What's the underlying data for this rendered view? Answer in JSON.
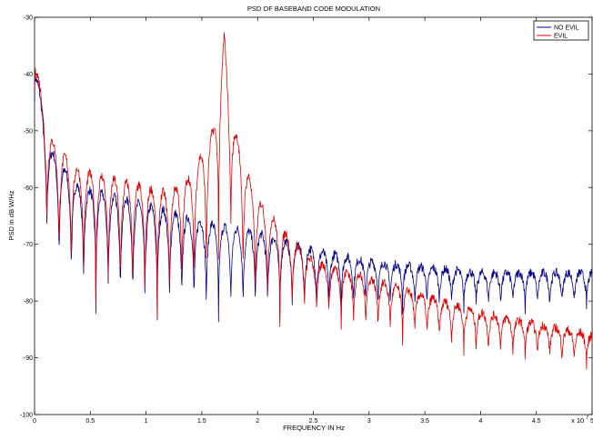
{
  "chart_data": {
    "type": "line",
    "title": "PSD OF BASEBAND CODE MODULATION",
    "xlabel": "FREQUENCY IN Hz",
    "ylabel": "PSD in dB W/Hz",
    "x_exponent_label": "x 10",
    "x_exponent_power": "7",
    "xlim": [
      0,
      5
    ],
    "ylim": [
      -100,
      -30
    ],
    "x_ticks": [
      "0",
      "0.5",
      "1",
      "1.5",
      "2",
      "2.5",
      "3",
      "3.5",
      "4",
      "4.5",
      "5"
    ],
    "y_ticks": [
      "-30",
      "-40",
      "-50",
      "-60",
      "-70",
      "-80",
      "-90",
      "-100"
    ],
    "grid": false,
    "legend_position": "top-right",
    "series": [
      {
        "name": "NO EVIL",
        "color": "#00008B",
        "envelope": {
          "x": [
            0,
            0.1,
            0.2,
            0.4,
            0.6,
            0.8,
            1.0,
            1.5,
            2.0,
            2.5,
            3.0,
            3.5,
            4.0,
            4.5,
            5.0
          ],
          "peak": [
            -36,
            -52,
            -55,
            -60,
            -61,
            -62,
            -63,
            -66,
            -68,
            -71,
            -73,
            -74,
            -75,
            -75,
            -75
          ],
          "trough": [
            -44,
            -70,
            -77,
            -81,
            -82,
            -83,
            -84,
            -84,
            -84,
            -83,
            -82,
            -82,
            -82,
            -82,
            -82
          ]
        },
        "lobe_period": 0.11
      },
      {
        "name": "EVIL",
        "color": "#E00000",
        "envelope": {
          "x": [
            0,
            0.1,
            0.2,
            0.4,
            0.6,
            0.8,
            1.0,
            1.2,
            1.4,
            1.5,
            1.6,
            1.65,
            1.7,
            1.75,
            1.8,
            1.9,
            2.0,
            2.2,
            2.5,
            3.0,
            3.5,
            4.0,
            4.5,
            5.0
          ],
          "peak": [
            -35,
            -50,
            -53,
            -57,
            -58,
            -59,
            -60,
            -61,
            -58,
            -54,
            -50,
            -44,
            -33,
            -45,
            -50,
            -57,
            -62,
            -67,
            -73,
            -76,
            -79,
            -82,
            -84,
            -86
          ],
          "trough": [
            -43,
            -68,
            -76,
            -80,
            -81,
            -82,
            -83,
            -83,
            -82,
            -80,
            -78,
            -72,
            -64,
            -72,
            -76,
            -82,
            -84,
            -84,
            -84,
            -86,
            -88,
            -90,
            -91,
            -92
          ]
        },
        "lobe_period": 0.11
      }
    ]
  }
}
